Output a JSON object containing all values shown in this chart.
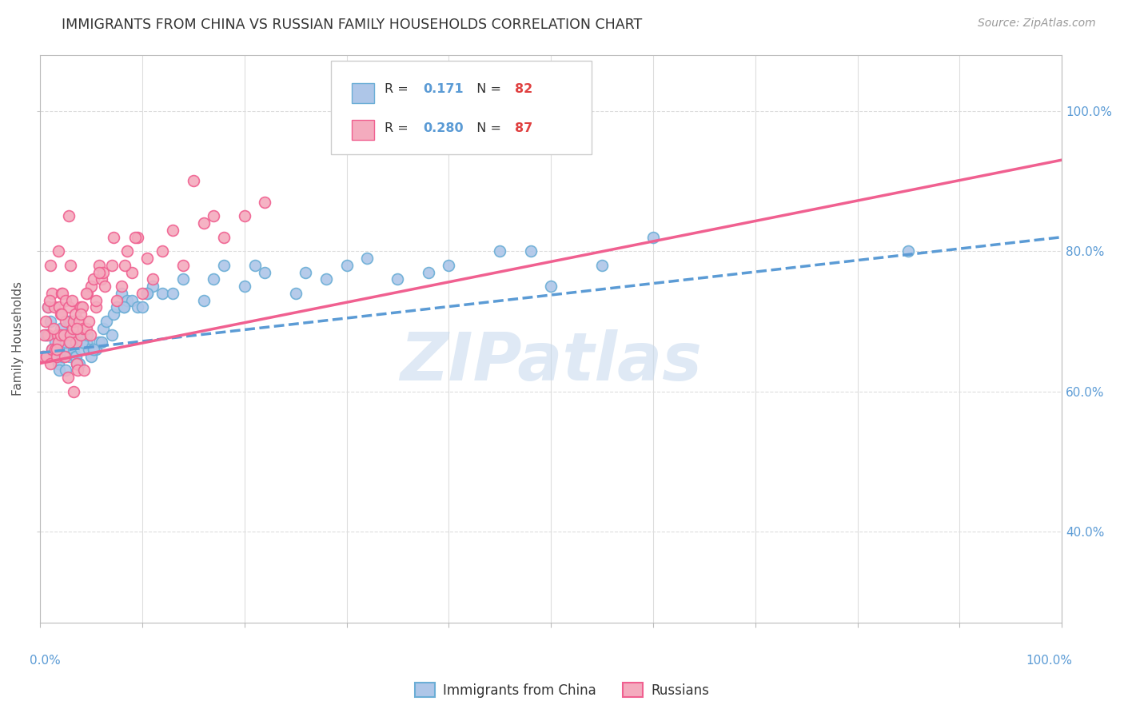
{
  "title": "IMMIGRANTS FROM CHINA VS RUSSIAN FAMILY HOUSEHOLDS CORRELATION CHART",
  "source": "Source: ZipAtlas.com",
  "ylabel": "Family Households",
  "watermark": "ZIPatlas",
  "legend_china_r_val": "0.171",
  "legend_china_n_val": "82",
  "legend_russia_r_val": "0.280",
  "legend_russia_n_val": "87",
  "china_color": "#aec6e8",
  "russia_color": "#f4abbe",
  "china_edge_color": "#6baed6",
  "russia_edge_color": "#f06090",
  "china_line_color": "#5b9bd5",
  "russia_line_color": "#f06090",
  "background_color": "#ffffff",
  "grid_color": "#dddddd",
  "title_color": "#333333",
  "right_axis_color": "#5b9bd5",
  "china_scatter_x": [
    0.5,
    0.8,
    1.0,
    1.2,
    1.5,
    1.5,
    1.8,
    1.9,
    2.0,
    2.2,
    2.3,
    2.5,
    2.5,
    2.7,
    2.8,
    2.9,
    3.0,
    3.0,
    3.1,
    3.2,
    3.3,
    3.4,
    3.5,
    3.6,
    3.7,
    3.8,
    4.0,
    4.0,
    4.1,
    4.2,
    4.3,
    4.5,
    4.8,
    5.0,
    5.2,
    5.5,
    5.8,
    6.0,
    6.2,
    6.5,
    7.0,
    7.2,
    7.5,
    8.0,
    8.2,
    8.5,
    9.0,
    9.5,
    10.0,
    10.5,
    11.0,
    12.0,
    13.0,
    14.0,
    16.0,
    17.0,
    18.0,
    20.0,
    21.0,
    22.0,
    25.0,
    26.0,
    28.0,
    30.0,
    32.0,
    35.0,
    38.0,
    40.0,
    45.0,
    48.0,
    50.0,
    55.0,
    60.0,
    85.0,
    3.6,
    4.1,
    4.6,
    5.2,
    8.2,
    10.5,
    0.3,
    0.6
  ],
  "china_scatter_y": [
    68,
    72,
    70,
    66,
    67,
    65,
    64,
    63,
    69,
    65,
    66,
    63,
    67,
    68,
    70,
    65,
    67,
    70,
    68,
    69,
    66,
    65,
    65,
    64,
    64,
    64,
    66,
    68,
    67,
    68,
    67,
    67,
    66,
    65,
    66,
    66,
    67,
    67,
    69,
    70,
    68,
    71,
    72,
    74,
    72,
    73,
    73,
    72,
    72,
    74,
    75,
    74,
    74,
    76,
    73,
    76,
    78,
    75,
    78,
    77,
    74,
    77,
    76,
    78,
    79,
    76,
    77,
    78,
    80,
    80,
    75,
    78,
    82,
    80,
    64,
    67,
    68,
    66,
    72,
    74,
    65,
    68
  ],
  "russia_scatter_x": [
    0.3,
    0.5,
    0.6,
    0.8,
    0.8,
    1.0,
    1.0,
    1.2,
    1.2,
    1.4,
    1.5,
    1.6,
    1.7,
    1.8,
    1.9,
    2.0,
    2.0,
    2.1,
    2.2,
    2.3,
    2.4,
    2.5,
    2.5,
    2.7,
    2.8,
    3.0,
    3.0,
    3.1,
    3.2,
    3.3,
    3.4,
    3.5,
    3.6,
    3.7,
    3.8,
    4.0,
    4.0,
    4.1,
    4.2,
    4.5,
    4.6,
    4.8,
    5.0,
    5.2,
    5.5,
    5.8,
    6.0,
    6.2,
    7.0,
    7.2,
    7.5,
    8.0,
    8.5,
    9.0,
    9.5,
    10.0,
    10.5,
    11.0,
    12.0,
    13.0,
    14.0,
    15.0,
    16.0,
    17.0,
    18.0,
    20.0,
    22.0,
    0.4,
    0.9,
    1.3,
    1.6,
    2.1,
    2.9,
    3.6,
    4.0,
    4.5,
    4.9,
    5.5,
    5.8,
    6.3,
    8.3,
    9.3,
    3.3,
    4.3,
    1.8,
    2.8
  ],
  "russia_scatter_y": [
    65,
    70,
    65,
    68,
    72,
    78,
    64,
    66,
    74,
    72,
    66,
    65,
    68,
    67,
    72,
    68,
    71,
    74,
    74,
    68,
    65,
    73,
    70,
    62,
    72,
    78,
    68,
    73,
    69,
    70,
    71,
    67,
    64,
    63,
    70,
    68,
    72,
    72,
    69,
    69,
    74,
    70,
    75,
    76,
    72,
    78,
    76,
    77,
    78,
    82,
    73,
    75,
    80,
    77,
    82,
    74,
    79,
    76,
    80,
    83,
    78,
    90,
    84,
    85,
    82,
    85,
    87,
    68,
    73,
    69,
    66,
    71,
    67,
    69,
    71,
    74,
    68,
    73,
    77,
    75,
    78,
    82,
    60,
    63,
    80,
    85
  ],
  "xlim": [
    0,
    100
  ],
  "ylim": [
    27,
    108
  ],
  "yticks": [
    40,
    60,
    80,
    100
  ],
  "ytick_labels": [
    "40.0%",
    "60.0%",
    "80.0%",
    "100.0%"
  ],
  "china_trend_x0": 0,
  "china_trend_x1": 100,
  "china_trend_y0": 65.5,
  "china_trend_y1": 82.0,
  "russia_trend_x0": 0,
  "russia_trend_x1": 100,
  "russia_trend_y0": 64.0,
  "russia_trend_y1": 93.0,
  "title_fontsize": 12.5,
  "source_fontsize": 10,
  "watermark_fontsize": 60,
  "watermark_color": "#c5d8ed",
  "legend_box_color": "#ffffff",
  "legend_border_color": "#cccccc"
}
